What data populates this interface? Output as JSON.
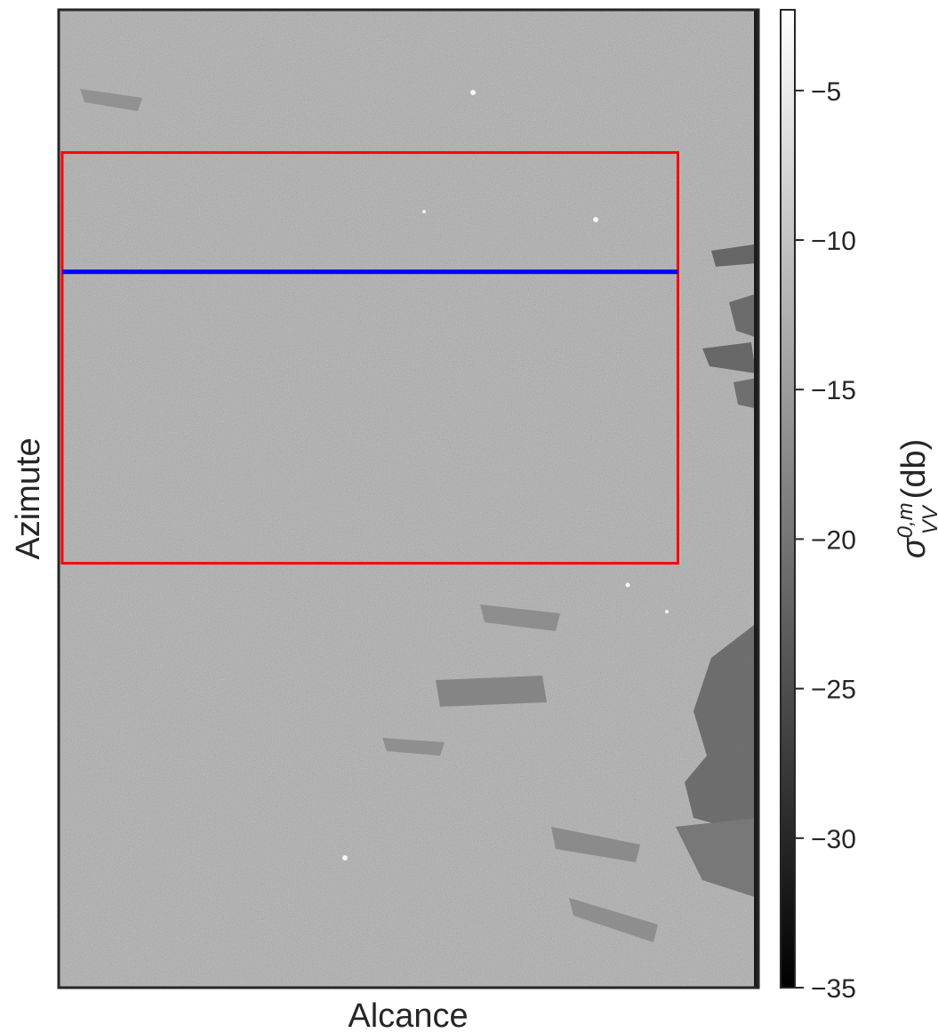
{
  "chart_data": {
    "type": "heatmap",
    "title": "",
    "xlabel": "Alcance",
    "ylabel": "Azimute",
    "colorbar": {
      "label_symbol": "σ",
      "label_superscript": "0,m",
      "label_subscript": "VV",
      "label_unit": "(db)",
      "range": [
        -35,
        -2.3
      ],
      "ticks": [
        -35,
        -30,
        -25,
        -20,
        -15,
        -10,
        -5
      ],
      "tick_labels": [
        "−35",
        "−30",
        "−25",
        "−20",
        "−15",
        "−10",
        "−5"
      ],
      "colormap": "gray"
    },
    "x_ticks_visible": false,
    "y_ticks_visible": false,
    "background_level_db": -13,
    "annotations": [
      {
        "name": "region-box",
        "shape": "rectangle",
        "color": "#ff0000",
        "x_range": [
          0.005,
          0.885
        ],
        "y_range": [
          0.146,
          0.566
        ]
      },
      {
        "name": "profile-line",
        "shape": "horizontal-line",
        "color": "#0000ff",
        "x_range": [
          0.005,
          0.885
        ],
        "y": 0.268
      }
    ],
    "colors": {
      "frame": "#262626",
      "text": "#262626"
    }
  }
}
